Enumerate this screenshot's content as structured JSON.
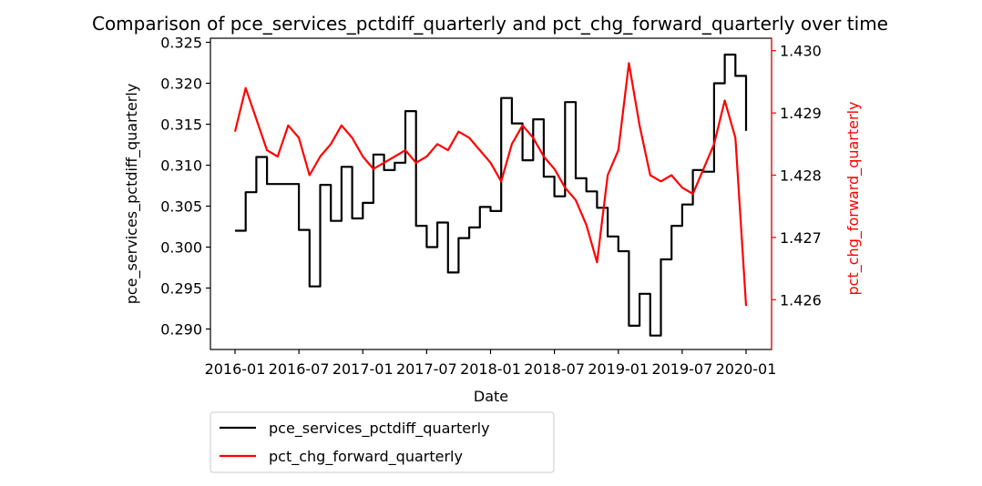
{
  "chart_data": {
    "type": "line",
    "title": "Comparison of pce_services_pctdiff_quarterly and pct_chg_forward_quarterly over time",
    "xlabel": "Date",
    "ylabel_left": "pce_services_pctdiff_quarterly",
    "ylabel_right": "pct_chg_forward_quarterly",
    "x_tick_labels": [
      "2016-01",
      "2016-07",
      "2017-01",
      "2017-07",
      "2018-01",
      "2018-07",
      "2019-01",
      "2019-07",
      "2020-01"
    ],
    "y_left_ticks": [
      "0.290",
      "0.295",
      "0.300",
      "0.305",
      "0.310",
      "0.315",
      "0.320",
      "0.325"
    ],
    "y_right_ticks": [
      "1.426",
      "1.427",
      "1.428",
      "1.429",
      "1.430"
    ],
    "y_left_lim": [
      0.2875,
      0.3255
    ],
    "y_right_lim": [
      1.4252,
      1.4302
    ],
    "x_range": [
      "2016-01",
      "2020-01"
    ],
    "grid": false,
    "legend_position": "below-left",
    "colors": {
      "left_series": "#000000",
      "right_series": "#ff0000",
      "right_axis": "#ff0000"
    },
    "series": [
      {
        "name": "pce_services_pctdiff_quarterly",
        "axis": "left",
        "color": "#000000",
        "points": [
          [
            "2016-01",
            0.302
          ],
          [
            "2016-02",
            0.3067
          ],
          [
            "2016-03",
            0.311
          ],
          [
            "2016-04",
            0.3077
          ],
          [
            "2016-05",
            0.3077
          ],
          [
            "2016-06",
            0.3077
          ],
          [
            "2016-07",
            0.3021
          ],
          [
            "2016-08",
            0.2952
          ],
          [
            "2016-09",
            0.3076
          ],
          [
            "2016-10",
            0.3032
          ],
          [
            "2016-11",
            0.3098
          ],
          [
            "2016-12",
            0.3035
          ],
          [
            "2017-01",
            0.3054
          ],
          [
            "2017-02",
            0.3113
          ],
          [
            "2017-03",
            0.3094
          ],
          [
            "2017-04",
            0.3103
          ],
          [
            "2017-05",
            0.3166
          ],
          [
            "2017-06",
            0.3026
          ],
          [
            "2017-07",
            0.3
          ],
          [
            "2017-08",
            0.303
          ],
          [
            "2017-09",
            0.2969
          ],
          [
            "2017-10",
            0.3011
          ],
          [
            "2017-11",
            0.3024
          ],
          [
            "2017-12",
            0.3049
          ],
          [
            "2018-01",
            0.3044
          ],
          [
            "2018-02",
            0.3182
          ],
          [
            "2018-03",
            0.3151
          ],
          [
            "2018-04",
            0.3106
          ],
          [
            "2018-05",
            0.3156
          ],
          [
            "2018-06",
            0.3086
          ],
          [
            "2018-07",
            0.3062
          ],
          [
            "2018-08",
            0.3177
          ],
          [
            "2018-09",
            0.3084
          ],
          [
            "2018-10",
            0.3068
          ],
          [
            "2018-11",
            0.3048
          ],
          [
            "2018-12",
            0.3013
          ],
          [
            "2019-01",
            0.2995
          ],
          [
            "2019-02",
            0.2904
          ],
          [
            "2019-03",
            0.2943
          ],
          [
            "2019-04",
            0.2892
          ],
          [
            "2019-05",
            0.2985
          ],
          [
            "2019-06",
            0.3026
          ],
          [
            "2019-07",
            0.3052
          ],
          [
            "2019-08",
            0.3094
          ],
          [
            "2019-09",
            0.3092
          ],
          [
            "2019-10",
            0.32
          ],
          [
            "2019-11",
            0.3235
          ],
          [
            "2019-12",
            0.3209
          ],
          [
            "2020-01",
            0.3142
          ]
        ]
      },
      {
        "name": "pct_chg_forward_quarterly",
        "axis": "right",
        "color": "#ff0000",
        "points": [
          [
            "2016-01",
            1.4287
          ],
          [
            "2016-02",
            1.4294
          ],
          [
            "2016-03",
            1.4289
          ],
          [
            "2016-04",
            1.4284
          ],
          [
            "2016-05",
            1.4283
          ],
          [
            "2016-06",
            1.4288
          ],
          [
            "2016-07",
            1.4286
          ],
          [
            "2016-08",
            1.428
          ],
          [
            "2016-09",
            1.4283
          ],
          [
            "2016-10",
            1.4285
          ],
          [
            "2016-11",
            1.4288
          ],
          [
            "2016-12",
            1.4286
          ],
          [
            "2017-01",
            1.4283
          ],
          [
            "2017-02",
            1.4281
          ],
          [
            "2017-03",
            1.4282
          ],
          [
            "2017-04",
            1.4283
          ],
          [
            "2017-05",
            1.4284
          ],
          [
            "2017-06",
            1.4282
          ],
          [
            "2017-07",
            1.4283
          ],
          [
            "2017-08",
            1.4285
          ],
          [
            "2017-09",
            1.4284
          ],
          [
            "2017-10",
            1.4287
          ],
          [
            "2017-11",
            1.4286
          ],
          [
            "2017-12",
            1.4284
          ],
          [
            "2018-01",
            1.4282
          ],
          [
            "2018-02",
            1.4279
          ],
          [
            "2018-03",
            1.4285
          ],
          [
            "2018-04",
            1.4288
          ],
          [
            "2018-05",
            1.4286
          ],
          [
            "2018-06",
            1.4283
          ],
          [
            "2018-07",
            1.4281
          ],
          [
            "2018-08",
            1.4278
          ],
          [
            "2018-09",
            1.4276
          ],
          [
            "2018-10",
            1.4272
          ],
          [
            "2018-11",
            1.4266
          ],
          [
            "2018-12",
            1.428
          ],
          [
            "2019-01",
            1.4284
          ],
          [
            "2019-02",
            1.4298
          ],
          [
            "2019-03",
            1.4288
          ],
          [
            "2019-04",
            1.428
          ],
          [
            "2019-05",
            1.4279
          ],
          [
            "2019-06",
            1.428
          ],
          [
            "2019-07",
            1.4278
          ],
          [
            "2019-08",
            1.4277
          ],
          [
            "2019-09",
            1.4281
          ],
          [
            "2019-10",
            1.4285
          ],
          [
            "2019-11",
            1.4292
          ],
          [
            "2019-12",
            1.4286
          ],
          [
            "2020-01",
            1.4259
          ]
        ]
      }
    ]
  }
}
